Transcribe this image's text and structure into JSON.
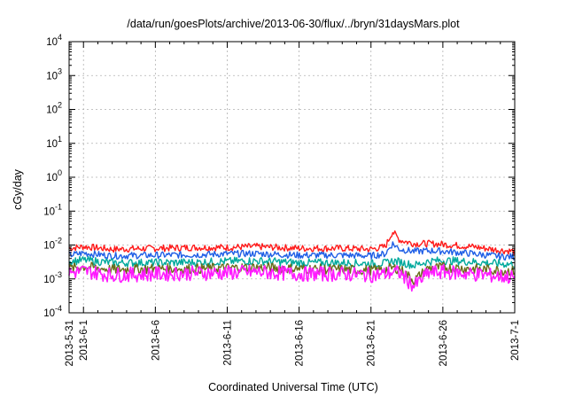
{
  "chart_data": {
    "type": "line",
    "title": "/data/run/goesPlots/archive/2013-06-30/flux/../bryn/31daysMars.plot",
    "xlabel": "Coordinated Universal Time (UTC)",
    "ylabel": "cGy/day",
    "yscale": "log",
    "ylim": [
      0.0001,
      10000
    ],
    "y_ticks": [
      {
        "value": 0.0001,
        "base": "10",
        "exp": "-4"
      },
      {
        "value": 0.001,
        "base": "10",
        "exp": "-3"
      },
      {
        "value": 0.01,
        "base": "10",
        "exp": "-2"
      },
      {
        "value": 0.1,
        "base": "10",
        "exp": "-1"
      },
      {
        "value": 1,
        "base": "10",
        "exp": "0"
      },
      {
        "value": 10,
        "base": "10",
        "exp": "1"
      },
      {
        "value": 100,
        "base": "10",
        "exp": "2"
      },
      {
        "value": 1000,
        "base": "10",
        "exp": "3"
      },
      {
        "value": 10000,
        "base": "10",
        "exp": "4"
      }
    ],
    "xlim": [
      "2013-05-31",
      "2013-07-01"
    ],
    "x_ticks": [
      {
        "date": "2013-05-31",
        "label": "2013-5-31"
      },
      {
        "date": "2013-06-01",
        "label": "2013-6-1"
      },
      {
        "date": "2013-06-06",
        "label": "2013-6-6"
      },
      {
        "date": "2013-06-11",
        "label": "2013-6-11"
      },
      {
        "date": "2013-06-16",
        "label": "2013-6-16"
      },
      {
        "date": "2013-06-21",
        "label": "2013-6-21"
      },
      {
        "date": "2013-06-26",
        "label": "2013-6-26"
      },
      {
        "date": "2013-07-01",
        "label": "2013-7-1"
      }
    ],
    "x_minor_per_major": 5,
    "grid": true,
    "legend": "none",
    "series": [
      {
        "color": "#ff1a1a",
        "x": [
          "2013-05-31",
          "2013-06-01",
          "2013-06-03",
          "2013-06-06",
          "2013-06-09",
          "2013-06-11",
          "2013-06-13",
          "2013-06-16",
          "2013-06-19",
          "2013-06-21",
          "2013-06-22",
          "2013-06-22.5",
          "2013-06-23",
          "2013-06-24",
          "2013-06-25",
          "2013-06-26",
          "2013-06-28",
          "2013-06-30",
          "2013-07-01"
        ],
        "values": [
          0.008,
          0.009,
          0.0075,
          0.008,
          0.0085,
          0.0085,
          0.009,
          0.008,
          0.008,
          0.0075,
          0.009,
          0.025,
          0.014,
          0.011,
          0.011,
          0.0105,
          0.009,
          0.007,
          0.0065
        ]
      },
      {
        "color": "#1f5fe6",
        "x": [
          "2013-05-31",
          "2013-06-01",
          "2013-06-03",
          "2013-06-06",
          "2013-06-09",
          "2013-06-11",
          "2013-06-13",
          "2013-06-16",
          "2013-06-19",
          "2013-06-21",
          "2013-06-22",
          "2013-06-22.5",
          "2013-06-23",
          "2013-06-24",
          "2013-06-25",
          "2013-06-26",
          "2013-06-28",
          "2013-06-30",
          "2013-07-01"
        ],
        "values": [
          0.005,
          0.0058,
          0.0048,
          0.005,
          0.0052,
          0.0055,
          0.0056,
          0.005,
          0.005,
          0.0048,
          0.0055,
          0.011,
          0.0075,
          0.0065,
          0.0068,
          0.0066,
          0.0056,
          0.0046,
          0.0045
        ]
      },
      {
        "color": "#00a99d",
        "x": [
          "2013-05-31",
          "2013-06-01",
          "2013-06-03",
          "2013-06-06",
          "2013-06-09",
          "2013-06-11",
          "2013-06-13",
          "2013-06-16",
          "2013-06-19",
          "2013-06-21",
          "2013-06-22",
          "2013-06-22.5",
          "2013-06-23",
          "2013-06-24",
          "2013-06-25",
          "2013-06-26",
          "2013-06-28",
          "2013-06-30",
          "2013-07-01"
        ],
        "values": [
          0.0032,
          0.0036,
          0.003,
          0.003,
          0.0031,
          0.0033,
          0.0034,
          0.003,
          0.003,
          0.0028,
          0.0029,
          0.0034,
          0.0032,
          0.0025,
          0.0033,
          0.0035,
          0.0032,
          0.0028,
          0.0027
        ]
      },
      {
        "color": "#6b6b1a",
        "x": [
          "2013-05-31",
          "2013-06-01",
          "2013-06-03",
          "2013-06-06",
          "2013-06-09",
          "2013-06-11",
          "2013-06-13",
          "2013-06-16",
          "2013-06-19",
          "2013-06-21",
          "2013-06-22",
          "2013-06-22.5",
          "2013-06-23",
          "2013-06-24",
          "2013-06-25",
          "2013-06-26",
          "2013-06-28",
          "2013-06-30",
          "2013-07-01"
        ],
        "values": [
          0.002,
          0.0023,
          0.0019,
          0.002,
          0.002,
          0.0021,
          0.0022,
          0.002,
          0.0019,
          0.0018,
          0.0019,
          0.0021,
          0.002,
          0.0009,
          0.0021,
          0.0022,
          0.002,
          0.0018,
          0.0017
        ]
      },
      {
        "color": "#ff1aff",
        "x": [
          "2013-05-31",
          "2013-06-01",
          "2013-06-03",
          "2013-06-06",
          "2013-06-09",
          "2013-06-11",
          "2013-06-13",
          "2013-06-16",
          "2013-06-19",
          "2013-06-21",
          "2013-06-22",
          "2013-06-22.5",
          "2013-06-23",
          "2013-06-24",
          "2013-06-25",
          "2013-06-26",
          "2013-06-28",
          "2013-06-30",
          "2013-07-01"
        ],
        "values": [
          0.0015,
          0.0017,
          0.0013,
          0.0014,
          0.0015,
          0.0015,
          0.0016,
          0.0014,
          0.0014,
          0.0013,
          0.0014,
          0.0016,
          0.0015,
          0.0006,
          0.0015,
          0.0016,
          0.0014,
          0.0012,
          0.0011
        ]
      }
    ]
  }
}
